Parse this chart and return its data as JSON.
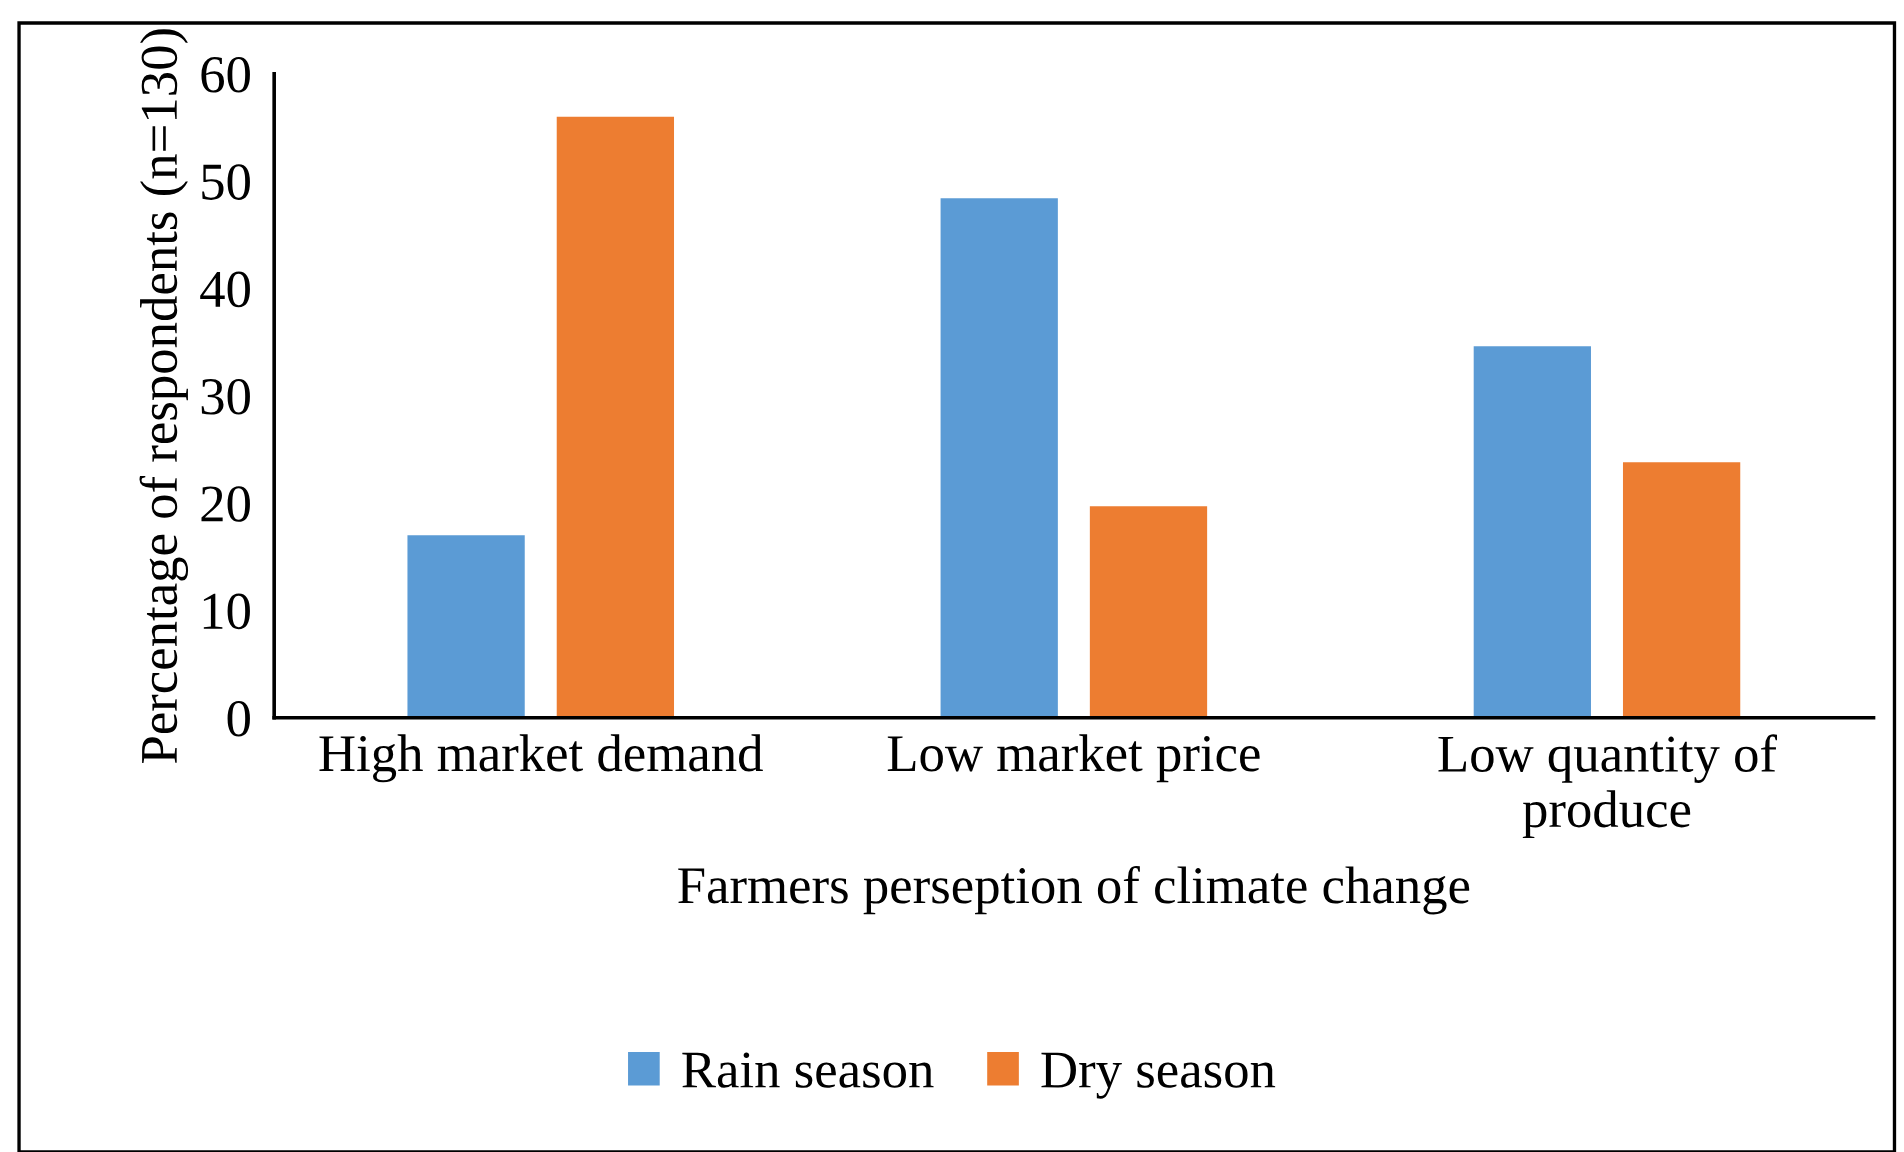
{
  "chart_data": {
    "type": "bar",
    "xlabel": "Farmers perseption of climate change",
    "ylabel": "Percentage of respondents (n=130)",
    "categories": [
      "High market demand",
      "Low market price",
      "Low quantity of\nproduce"
    ],
    "series": [
      {
        "name": "Rain season",
        "color": "#5b9bd5",
        "values": [
          17,
          48.4,
          34.6
        ]
      },
      {
        "name": "Dry season",
        "color": "#ed7d31",
        "values": [
          56,
          19.7,
          23.8
        ]
      }
    ],
    "ylim": [
      0,
      60
    ],
    "yticks": [
      0,
      10,
      20,
      30,
      40,
      50,
      60
    ],
    "grid": false,
    "legend": "bottom"
  }
}
